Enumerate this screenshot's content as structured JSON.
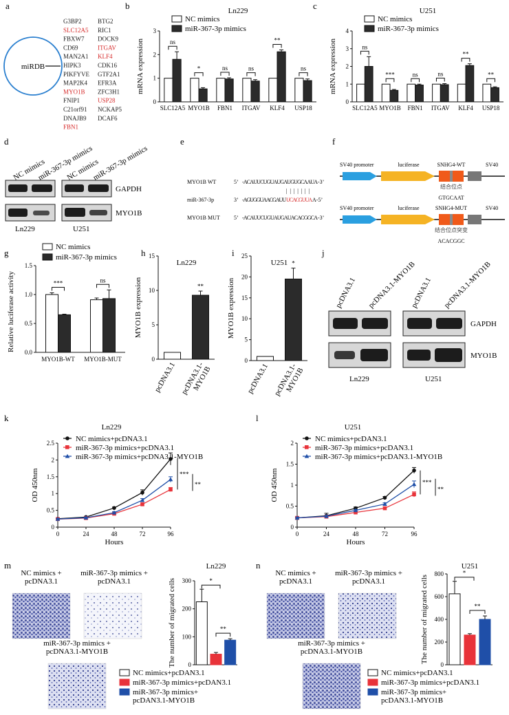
{
  "panels": {
    "a": {
      "letter": "a",
      "circle_label": "miRDB",
      "genes_col1": [
        {
          "text": "G3BP2",
          "color": "#222222"
        },
        {
          "text": "SLC12A5",
          "color": "#d62b2b"
        },
        {
          "text": "FBXW7",
          "color": "#222222"
        },
        {
          "text": "CD69",
          "color": "#222222"
        },
        {
          "text": "MAN2A1",
          "color": "#222222"
        },
        {
          "text": "HIPK3",
          "color": "#222222"
        },
        {
          "text": "PIKFYVE",
          "color": "#222222"
        },
        {
          "text": "MAP2K4",
          "color": "#222222"
        },
        {
          "text": "MYO1B",
          "color": "#d62b2b"
        },
        {
          "text": "FNIP1",
          "color": "#222222"
        },
        {
          "text": "C21orf91",
          "color": "#222222"
        },
        {
          "text": "DNAJB9",
          "color": "#222222"
        },
        {
          "text": "FBN1",
          "color": "#d62b2b"
        }
      ],
      "genes_col2": [
        {
          "text": "BTG2",
          "color": "#222222"
        },
        {
          "text": "RIC1",
          "color": "#222222"
        },
        {
          "text": "DOCK9",
          "color": "#222222"
        },
        {
          "text": "ITGAV",
          "color": "#d62b2b"
        },
        {
          "text": "KLF4",
          "color": "#d62b2b"
        },
        {
          "text": "CDK16",
          "color": "#222222"
        },
        {
          "text": "GTF2A1",
          "color": "#222222"
        },
        {
          "text": "EFR3A",
          "color": "#222222"
        },
        {
          "text": "ZFC3H1",
          "color": "#222222"
        },
        {
          "text": "USP28",
          "color": "#d62b2b"
        },
        {
          "text": "NCKAP5",
          "color": "#222222"
        },
        {
          "text": "DCAF6",
          "color": "#222222"
        }
      ]
    },
    "b": {
      "letter": "b",
      "title": "Ln229",
      "ylabel": "mRNA expression"
    },
    "c": {
      "letter": "c",
      "title": "U251",
      "ylabel": "mRNA expression"
    },
    "d": {
      "letter": "d",
      "lanes": [
        "NC mimics",
        "miR-367-3p mimics",
        "NC mimics",
        "miR-367-3p mimics"
      ],
      "row_labels": [
        "GAPDH",
        "MYO1B"
      ],
      "cell_labels": [
        "Ln229",
        "U251"
      ]
    },
    "e": {
      "letter": "e",
      "rows": [
        {
          "name": "MYO1B WT",
          "prefix": "5’",
          "seq_a": "-ACAUUCUGUAUGAUGUGCAAUA",
          "seq_b": "",
          "suffix": "-3’"
        },
        {
          "name": "miR-367-3p",
          "prefix": "3’",
          "seq_a": "-AGUGGUAACGAUU",
          "seq_b": "UCACGUUA",
          "suffix": "A-5’"
        },
        {
          "name": "MYO1B MUT",
          "prefix": "5’",
          "seq_a": "-ACAUUCUGUAUGAUACACGGCA",
          "seq_b": "",
          "suffix": "-3’"
        }
      ],
      "pairing": "|||||||"
    },
    "f": {
      "letter": "f",
      "constructs": [
        {
          "promoter": "SV40 promoter",
          "gene": "luciferase",
          "insert": "SNHG4-WT",
          "tail": "SV40",
          "site_label": "结合位点",
          "seq": "GTGCAAT"
        },
        {
          "promoter": "SV40 promoter",
          "gene": "luciferase",
          "insert": "SNHG4-MUT",
          "tail": "SV40",
          "site_label": "结合位点突变",
          "seq": "ACACGGC"
        }
      ],
      "colors": {
        "promoter": "#2a9fe0",
        "luciferase": "#f5b324",
        "insert": "#f05a1a",
        "tail": "#777777"
      }
    },
    "g": {
      "letter": "g",
      "ylabel": "Relative luciferase activity"
    },
    "h": {
      "letter": "h",
      "title": "Ln229",
      "ylabel": "MYO1B expression"
    },
    "i": {
      "letter": "i",
      "title": "U251",
      "ylabel": "MYO1B expression"
    },
    "j": {
      "letter": "j",
      "lanes": [
        "pcDNA3.1",
        "pcDNA3.1-MYO1B",
        "pcDNA3.1",
        "pcDNA3.1-MYO1B"
      ],
      "row_labels": [
        "GAPDH",
        "MYO1B"
      ],
      "cell_labels": [
        "Ln229",
        "U251"
      ]
    },
    "k": {
      "letter": "k",
      "title": "Ln229"
    },
    "l": {
      "letter": "l",
      "title": "U251"
    },
    "m": {
      "letter": "m",
      "title": "Ln229",
      "img_labels": [
        "NC mimics +\npcDNA3.1",
        "miR-367-3p mimics +\npcDNA3.1",
        "miR-367-3p mimics +\npcDNA3.1-MYO1B"
      ],
      "legend": [
        "NC mimics+pcDAN3.1",
        "miR-367-3p mimics+pcDAN3.1",
        "miR-367-3p mimics+\npcDAN3.1-MYO1B"
      ]
    },
    "n": {
      "letter": "n",
      "title": "U251",
      "img_labels": [
        "NC mimics +\npcDNA3.1",
        "miR-367-3p mimics +\npcDNA3.1",
        "miR-367-3p mimics +\npcDNA3.1-MYO1B"
      ],
      "legend": [
        "NC mimics+pcDAN3.1",
        "miR-367-3p mimics+pcDAN3.1",
        "miR-367-3p mimics+\npcDAN3.1-MYO1B"
      ]
    }
  },
  "colors": {
    "black_series": "#111111",
    "red_series": "#e8333a",
    "blue_series": "#1f4fa8",
    "ctrl_bar": "#ffffff",
    "dark_bar": "#2b2b2b",
    "stain": "#2e3a8c",
    "red_text": "#d62b2b"
  },
  "chart_data": [
    {
      "id": "b",
      "type": "bar",
      "title": "Ln229",
      "ylabel": "mRNA expression",
      "ylim": [
        0,
        3
      ],
      "yticks": [
        0,
        1,
        2,
        3
      ],
      "categories": [
        "SLC12A5",
        "MYO1B",
        "FBN1",
        "ITGAV",
        "KLF4",
        "USP18"
      ],
      "series": [
        {
          "name": "NC mimics",
          "values": [
            1,
            1,
            1,
            1,
            1,
            1
          ],
          "errors": [
            0,
            0,
            0,
            0,
            0,
            0
          ]
        },
        {
          "name": "miR-367-3p mimics",
          "values": [
            1.8,
            0.55,
            0.97,
            0.88,
            2.12,
            0.9
          ],
          "errors": [
            0.32,
            0.05,
            0.05,
            0.06,
            0.08,
            0.07
          ]
        }
      ],
      "significance": [
        "ns",
        "*",
        "ns",
        "ns",
        "**",
        "ns"
      ]
    },
    {
      "id": "c",
      "type": "bar",
      "title": "U251",
      "ylabel": "mRNA expression",
      "ylim": [
        0,
        4
      ],
      "yticks": [
        0,
        1,
        2,
        3,
        4
      ],
      "categories": [
        "SLC12A5",
        "MYO1B",
        "FBN1",
        "ITGAV",
        "KLF4",
        "USP18"
      ],
      "series": [
        {
          "name": "NC mimics",
          "values": [
            1,
            1,
            1,
            1,
            1,
            1
          ],
          "errors": [
            0,
            0,
            0,
            0,
            0,
            0
          ]
        },
        {
          "name": "miR-367-3p mimics",
          "values": [
            2.0,
            0.65,
            0.95,
            0.97,
            2.05,
            0.8
          ],
          "errors": [
            0.55,
            0.05,
            0.05,
            0.06,
            0.1,
            0.05
          ]
        }
      ],
      "significance": [
        "ns",
        "***",
        "ns",
        "ns",
        "**",
        "**"
      ]
    },
    {
      "id": "g",
      "type": "bar",
      "ylabel": "Relative luciferase activity",
      "ylim": [
        0,
        1.5
      ],
      "yticks": [
        0.0,
        0.5,
        1.0,
        1.5
      ],
      "categories": [
        "MYO1B-WT",
        "MYO1B-MUT"
      ],
      "series": [
        {
          "name": "NC mimics",
          "values": [
            1.0,
            0.91
          ],
          "errors": [
            0.03,
            0.03
          ]
        },
        {
          "name": "miR-367-3p mimics",
          "values": [
            0.65,
            0.93
          ],
          "errors": [
            0.01,
            0.15
          ]
        }
      ],
      "significance": [
        "***",
        "ns"
      ]
    },
    {
      "id": "h",
      "type": "bar",
      "title": "Ln229",
      "ylabel": "MYO1B expression",
      "ylim": [
        0,
        15
      ],
      "yticks": [
        0,
        5,
        10,
        15
      ],
      "categories": [
        "pcDNA3.1",
        "pcDNA3.1-\nMYO1B"
      ],
      "values": [
        1.0,
        9.3
      ],
      "errors": [
        0,
        0.6
      ],
      "significance": "**"
    },
    {
      "id": "i",
      "type": "bar",
      "title": "U251",
      "ylabel": "MYO1B expression",
      "ylim": [
        0,
        25
      ],
      "yticks": [
        0,
        5,
        10,
        15,
        20,
        25
      ],
      "categories": [
        "pcDNA3.1",
        "pcDNA3.1-\nMYO1B"
      ],
      "values": [
        1.0,
        19.5
      ],
      "errors": [
        0,
        2.6
      ],
      "significance": "*"
    },
    {
      "id": "k",
      "type": "line",
      "title": "Ln229",
      "xlabel": "Hours",
      "ylabel": "OD 450nm",
      "x": [
        0,
        24,
        48,
        72,
        96
      ],
      "xlim": [
        0,
        96
      ],
      "ylim": [
        0,
        2.5
      ],
      "yticks": [
        0,
        0.5,
        1.0,
        1.5,
        2.0,
        2.5
      ],
      "series": [
        {
          "name": "NC mimics+pcDNA3.1",
          "values": [
            0.25,
            0.3,
            0.57,
            1.03,
            2.03
          ],
          "errors": [
            0.02,
            0.02,
            0.03,
            0.08,
            0.18
          ]
        },
        {
          "name": "miR-367-3p mimics+pcDNA3.1",
          "values": [
            0.24,
            0.27,
            0.4,
            0.68,
            1.12
          ],
          "errors": [
            0.02,
            0.02,
            0.03,
            0.04,
            0.06
          ]
        },
        {
          "name": "miR-367-3p mimics+pcDNA3.1-MYO1B",
          "values": [
            0.24,
            0.28,
            0.43,
            0.8,
            1.42
          ],
          "errors": [
            0.02,
            0.02,
            0.03,
            0.05,
            0.08
          ]
        }
      ],
      "significance": [
        "***",
        "**"
      ]
    },
    {
      "id": "l",
      "type": "line",
      "title": "U251",
      "xlabel": "Hours",
      "ylabel": "OD 450nm",
      "x": [
        0,
        24,
        48,
        72,
        96
      ],
      "xlim": [
        0,
        96
      ],
      "ylim": [
        0,
        2.0
      ],
      "yticks": [
        0,
        0.5,
        1.0,
        1.5,
        2.0
      ],
      "series": [
        {
          "name": "NC mimics+pcDAN3.1",
          "values": [
            0.22,
            0.27,
            0.45,
            0.7,
            1.35
          ],
          "errors": [
            0.02,
            0.06,
            0.03,
            0.03,
            0.07
          ]
        },
        {
          "name": "miR-367-3p mimics+pcDAN3.1",
          "values": [
            0.22,
            0.25,
            0.35,
            0.45,
            0.78
          ],
          "errors": [
            0.02,
            0.02,
            0.02,
            0.03,
            0.06
          ]
        },
        {
          "name": "miR-367-3p mimics+pcDAN3.1-MYO1B",
          "values": [
            0.22,
            0.26,
            0.4,
            0.55,
            1.02
          ],
          "errors": [
            0.02,
            0.02,
            0.02,
            0.03,
            0.08
          ]
        }
      ],
      "significance": [
        "***",
        "**"
      ]
    },
    {
      "id": "m",
      "type": "bar",
      "title": "Ln229",
      "ylabel": "The number of migrated cells",
      "ylim": [
        0,
        300
      ],
      "yticks": [
        0,
        100,
        200,
        300
      ],
      "categories": [
        "NC mimics+pcDAN3.1",
        "miR-367-3p mimics+pcDAN3.1",
        "miR-367-3p mimics+pcDAN3.1-MYO1B"
      ],
      "values": [
        225,
        38,
        88
      ],
      "errors": [
        45,
        6,
        5
      ],
      "significance": [
        "*",
        "**"
      ]
    },
    {
      "id": "n",
      "type": "bar",
      "title": "U251",
      "ylabel": "The number of migrated cells",
      "ylim": [
        0,
        800
      ],
      "yticks": [
        0,
        200,
        400,
        600,
        800
      ],
      "categories": [
        "NC mimics+pcDAN3.1",
        "miR-367-3p mimics+pcDAN3.1",
        "miR-367-3p mimics+pcDAN3.1-MYO1B"
      ],
      "values": [
        625,
        262,
        400
      ],
      "errors": [
        110,
        12,
        30
      ],
      "significance": [
        "*",
        "**"
      ]
    }
  ]
}
